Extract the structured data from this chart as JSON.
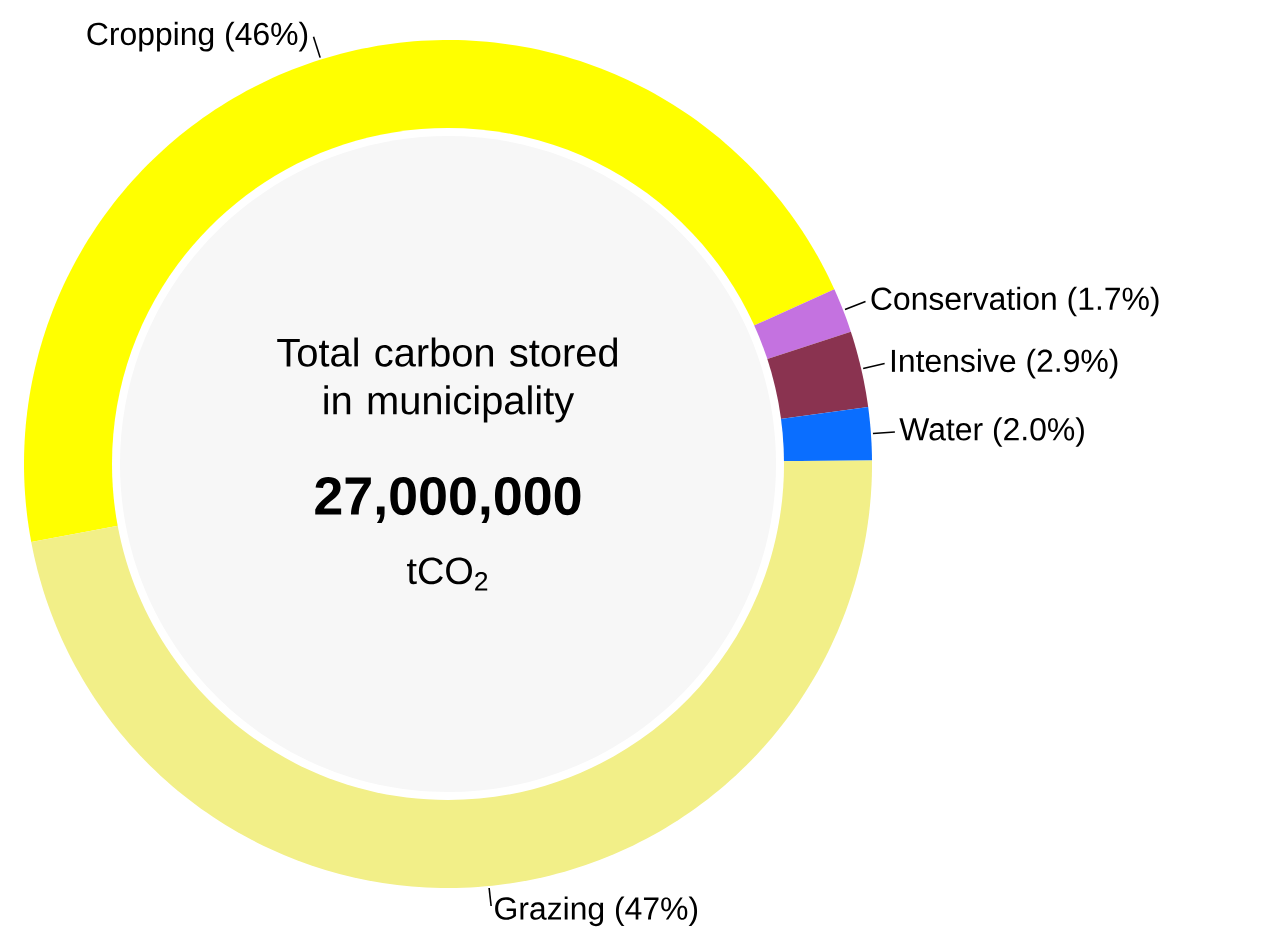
{
  "chart_data": {
    "type": "donut",
    "title": "Total carbon stored in municipality",
    "categories": [
      "Cropping",
      "Conservation",
      "Intensive",
      "Water",
      "Grazing"
    ],
    "values": [
      46,
      1.7,
      2.9,
      2.0,
      47
    ],
    "value_labels": [
      "(46%)",
      "(1.7%)",
      "(2.9%)",
      "(2.0%)",
      "(47%)"
    ],
    "colors": [
      "#ffff00",
      "#c472e0",
      "#8a3350",
      "#0a6eff",
      "#f2ef88"
    ],
    "annotations": [
      "27,000,000",
      "tCO$_{2}$"
    ]
  }
}
